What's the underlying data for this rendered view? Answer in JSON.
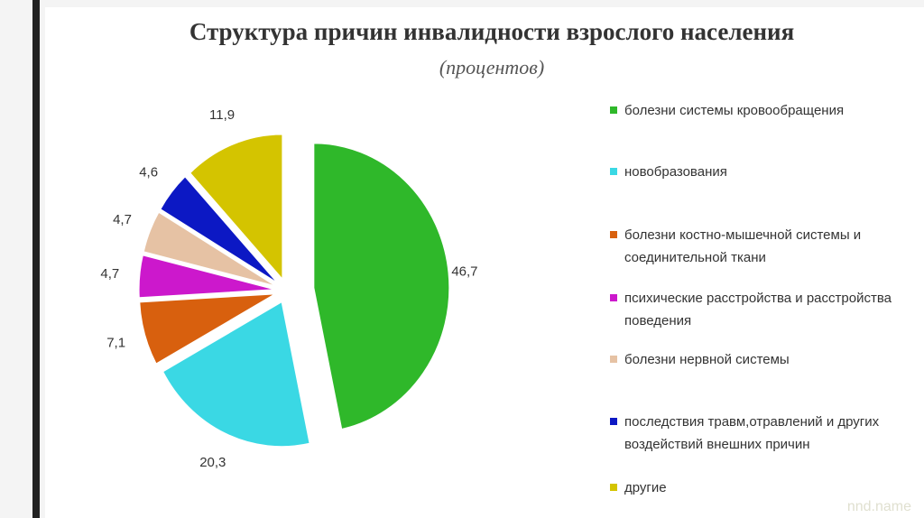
{
  "chart_data": {
    "type": "pie",
    "title": "Структура причин инвалидности взрослого населения",
    "subtitle": "(процентов)",
    "categories": [
      "болезни системы кровообращения",
      "новобразования",
      "болезни костно-мышечной системы и соединительной ткани",
      "психические расстройства и расстройства поведения",
      "болезни нервной системы",
      "последствия травм,отравлений и других воздействий внешних причин",
      "другие"
    ],
    "values": [
      46.7,
      20.3,
      7.1,
      4.7,
      4.7,
      4.6,
      11.9
    ],
    "value_labels": [
      "46,7",
      "20,3",
      "7,1",
      "4,7",
      "4,7",
      "4,6",
      "11,9"
    ],
    "colors": [
      "#2fb82a",
      "#3ad8e4",
      "#d8600e",
      "#cc18cc",
      "#e6c2a4",
      "#0c18c4",
      "#d4c400"
    ],
    "watermark": "nnd.name"
  }
}
